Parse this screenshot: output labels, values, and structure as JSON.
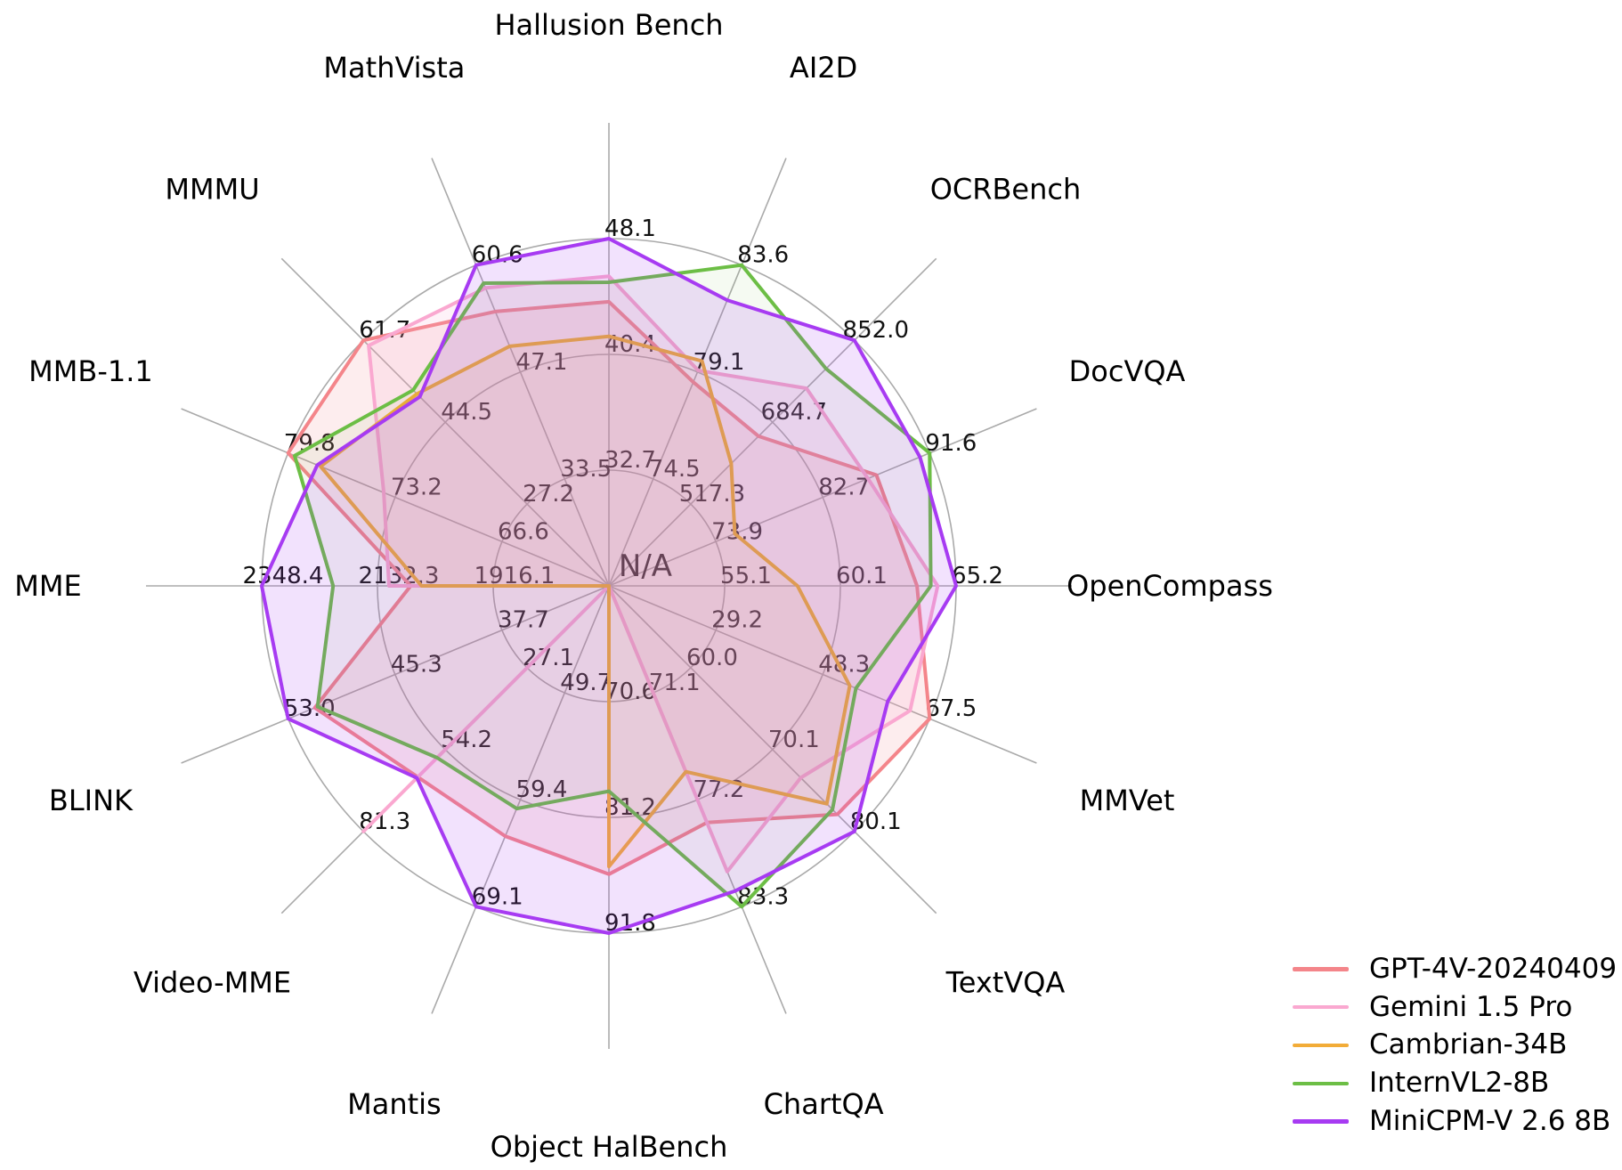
{
  "figure": {
    "background": "#ffffff",
    "center_label": "N/A",
    "grid_color": "#aaaaaa"
  },
  "chart_data": {
    "type": "radar",
    "title": "",
    "grid": "on",
    "legend_position": "lower right",
    "rings_fractions": [
      0.3333,
      0.6667,
      1.0
    ],
    "na_policy": "missing values are plotted at the center (labeled N/A)",
    "axes": [
      {
        "label": "Hallusion Bench",
        "ring_labels": [
          "32.7",
          "40.4",
          "48.1"
        ]
      },
      {
        "label": "AI2D",
        "ring_labels": [
          "74.5",
          "79.1",
          "83.6"
        ]
      },
      {
        "label": "OCRBench",
        "ring_labels": [
          "517.3",
          "684.7",
          "852.0"
        ]
      },
      {
        "label": "DocVQA",
        "ring_labels": [
          "73.9",
          "82.7",
          "91.6"
        ]
      },
      {
        "label": "OpenCompass",
        "ring_labels": [
          "55.1",
          "60.1",
          "65.2"
        ]
      },
      {
        "label": "MMVet",
        "ring_labels": [
          "29.2",
          "48.3",
          "67.5"
        ]
      },
      {
        "label": "TextVQA",
        "ring_labels": [
          "60.0",
          "70.1",
          "80.1"
        ]
      },
      {
        "label": "ChartQA",
        "ring_labels": [
          "71.1",
          "77.2",
          "83.3"
        ]
      },
      {
        "label": "Object HalBench",
        "ring_labels": [
          "70.6",
          "81.2",
          "91.8"
        ]
      },
      {
        "label": "Mantis",
        "ring_labels": [
          "49.7",
          "59.4",
          "69.1"
        ]
      },
      {
        "label": "Video-MME",
        "ring_labels": [
          "27.1",
          "54.2",
          "81.3"
        ]
      },
      {
        "label": "BLINK",
        "ring_labels": [
          "37.7",
          "45.3",
          "53.0"
        ]
      },
      {
        "label": "MME",
        "ring_labels": [
          "1916.1",
          "2132.3",
          "2348.4"
        ]
      },
      {
        "label": "MMB-1.1",
        "ring_labels": [
          "66.6",
          "73.2",
          "79.8"
        ]
      },
      {
        "label": "MMMU",
        "ring_labels": [
          "27.2",
          "44.5",
          "61.7"
        ]
      },
      {
        "label": "MathVista",
        "ring_labels": [
          "33.5",
          "47.1",
          "60.6"
        ]
      }
    ],
    "series": [
      {
        "name": "GPT-4V-20240409",
        "color": "#F4858A",
        "fill_opacity": 0.15,
        "values": [
          43.9,
          78.6,
          656.0,
          87.2,
          63.5,
          67.5,
          78.0,
          78.5,
          86.4,
          62.7,
          63.3,
          51.1,
          2070.2,
          79.8,
          61.7,
          54.7
        ]
      },
      {
        "name": "Gemini 1.5 Pro",
        "color": "#FAA8D0",
        "fill_opacity": 0.15,
        "values": [
          45.6,
          79.1,
          754.0,
          86.5,
          64.4,
          64.0,
          73.5,
          81.3,
          null,
          null,
          81.3,
          null,
          2110.6,
          73.9,
          60.6,
          57.7
        ]
      },
      {
        "name": "Cambrian-34B",
        "color": "#F2AC38",
        "fill_opacity": 0.07,
        "values": [
          41.6,
          79.5,
          600.0,
          75.5,
          58.3,
          53.2,
          76.7,
          75.6,
          85.7,
          null,
          null,
          null,
          2049.9,
          77.8,
          50.4,
          50.3
        ]
      },
      {
        "name": "InternVL2-8B",
        "color": "#6CBE45",
        "fill_opacity": 0.07,
        "values": [
          45.2,
          83.6,
          794.0,
          91.6,
          64.1,
          54.3,
          77.4,
          83.3,
          78.8,
          60.2,
          56.9,
          50.9,
          2215.1,
          79.4,
          51.2,
          58.3
        ]
      },
      {
        "name": "MiniCPM-V 2.6 8B",
        "color": "#A73BF2",
        "fill_opacity": 0.15,
        "values": [
          48.1,
          82.1,
          852.0,
          90.8,
          65.2,
          60.0,
          80.1,
          82.4,
          91.8,
          69.1,
          63.6,
          53.0,
          2348.4,
          78.0,
          49.8,
          60.6
        ]
      }
    ]
  }
}
